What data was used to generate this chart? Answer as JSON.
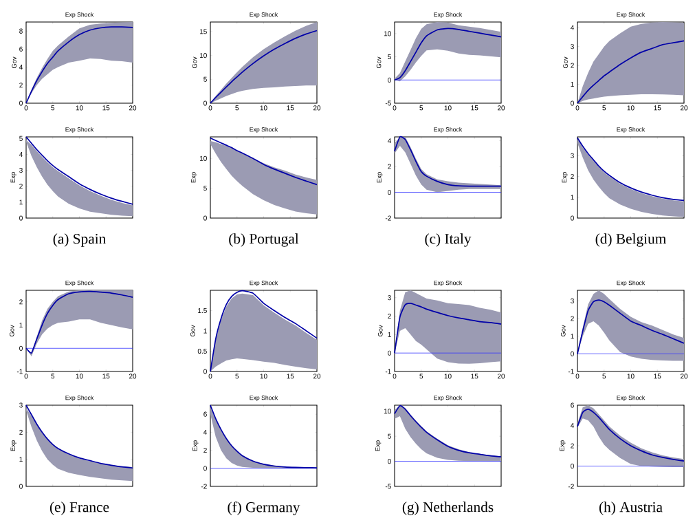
{
  "chart_data": [
    {
      "type": "line",
      "title": "Exp Shock",
      "ylabel": "Gov",
      "x": [
        0,
        1,
        2,
        3,
        4,
        5,
        6,
        8,
        10,
        12,
        14,
        16,
        18,
        20
      ],
      "xlim": [
        0,
        20
      ],
      "xticks": [
        0,
        5,
        10,
        15,
        20
      ],
      "ylim": [
        0,
        9
      ],
      "yticks": [
        0,
        2,
        4,
        6,
        8
      ],
      "series": [
        {
          "color": "#0000a8",
          "values": [
            0,
            1.3,
            2.5,
            3.5,
            4.4,
            5.1,
            5.8,
            6.8,
            7.6,
            8.1,
            8.35,
            8.45,
            8.45,
            8.4
          ],
          "upper": [
            0,
            1.5,
            2.8,
            3.9,
            4.9,
            5.8,
            6.4,
            7.4,
            8.3,
            8.7,
            8.82,
            8.9,
            8.97,
            9
          ],
          "lower": [
            0,
            1.1,
            2.0,
            2.7,
            3.2,
            3.7,
            4.0,
            4.5,
            4.7,
            4.95,
            4.9,
            4.7,
            4.65,
            4.5
          ]
        }
      ]
    },
    {
      "type": "line",
      "title": "Exp Shock",
      "ylabel": "Gov",
      "x": [
        0,
        1,
        2,
        3,
        4,
        5,
        6,
        8,
        10,
        12,
        14,
        16,
        18,
        20
      ],
      "xlim": [
        0,
        20
      ],
      "xticks": [
        0,
        5,
        10,
        15,
        20
      ],
      "ylim": [
        0,
        17
      ],
      "yticks": [
        0,
        5,
        10,
        15
      ],
      "series": [
        {
          "color": "#0000a8",
          "values": [
            0,
            1.2,
            2.3,
            3.4,
            4.5,
            5.5,
            6.5,
            8.3,
            9.9,
            11.3,
            12.5,
            13.6,
            14.5,
            15.2
          ],
          "upper": [
            0,
            1.5,
            2.8,
            4.1,
            5.3,
            6.5,
            7.6,
            9.6,
            11.3,
            12.7,
            14,
            15.2,
            16.2,
            17
          ],
          "lower": [
            0,
            0.5,
            1.0,
            1.5,
            1.9,
            2.3,
            2.6,
            3.0,
            3.2,
            3.3,
            3.5,
            3.6,
            3.7,
            3.7
          ]
        }
      ]
    },
    {
      "type": "line",
      "title": "Exp Shock",
      "ylabel": "Gov",
      "x": [
        0,
        1,
        2,
        3,
        4,
        5,
        6,
        8,
        10,
        12,
        14,
        16,
        18,
        20
      ],
      "xlim": [
        0,
        20
      ],
      "xticks": [
        0,
        5,
        10,
        15,
        20
      ],
      "ylim": [
        -5,
        12.5
      ],
      "yticks": [
        -5,
        0,
        5,
        10
      ],
      "ref_lines": [
        {
          "axis": "y",
          "value": 0,
          "color": "#3333ff"
        }
      ],
      "series": [
        {
          "color": "#0000a8",
          "values": [
            0,
            0.5,
            2.0,
            4.0,
            6.0,
            8.0,
            9.5,
            10.8,
            11.1,
            10.9,
            10.5,
            10.1,
            9.7,
            9.3
          ],
          "upper": [
            0.3,
            1.5,
            4,
            6.5,
            9,
            11,
            12,
            12.5,
            12.4,
            11.8,
            11.5,
            11.2,
            10.8,
            10.4
          ],
          "lower": [
            0,
            -0.3,
            0.8,
            2.2,
            3.8,
            5.2,
            6.4,
            6.6,
            6.3,
            5.7,
            5.4,
            5.3,
            5.1,
            4.9
          ]
        }
      ]
    },
    {
      "type": "line",
      "title": "Exp Shock",
      "ylabel": "Gov",
      "x": [
        0,
        1,
        2,
        3,
        4,
        5,
        6,
        8,
        10,
        12,
        14,
        16,
        18,
        20
      ],
      "xlim": [
        0,
        20
      ],
      "xticks": [
        0,
        5,
        10,
        15,
        20
      ],
      "ylim": [
        0,
        4.3
      ],
      "yticks": [
        0,
        1,
        2,
        3,
        4
      ],
      "series": [
        {
          "color": "#0000a8",
          "values": [
            0,
            0.35,
            0.68,
            0.95,
            1.2,
            1.45,
            1.65,
            2.05,
            2.4,
            2.7,
            2.9,
            3.1,
            3.2,
            3.3
          ],
          "upper": [
            0,
            0.9,
            1.6,
            2.2,
            2.6,
            3.0,
            3.3,
            3.7,
            4.05,
            4.2,
            4.27,
            4.3,
            4.28,
            4.25
          ],
          "lower": [
            0,
            0.12,
            0.2,
            0.25,
            0.3,
            0.35,
            0.37,
            0.42,
            0.45,
            0.47,
            0.47,
            0.46,
            0.45,
            0.42
          ]
        }
      ]
    },
    {
      "type": "line",
      "title": "Exp Shock",
      "ylabel": "Exp",
      "x": [
        0,
        1,
        2,
        3,
        4,
        5,
        6,
        8,
        10,
        12,
        14,
        16,
        18,
        20
      ],
      "xlim": [
        0,
        20
      ],
      "xticks": [
        0,
        5,
        10,
        15,
        20
      ],
      "ylim": [
        0,
        5.1
      ],
      "yticks": [
        0,
        1,
        2,
        3,
        4,
        5
      ],
      "tick_labels": "y",
      "annotations": [
        "(a) Spain"
      ],
      "series": [
        {
          "color": "#0000a8",
          "values": [
            5.1,
            4.7,
            4.3,
            3.95,
            3.6,
            3.3,
            3.05,
            2.6,
            2.15,
            1.8,
            1.5,
            1.25,
            1.05,
            0.87
          ],
          "upper": [
            4.9,
            4.6,
            4.2,
            3.85,
            3.5,
            3.2,
            2.95,
            2.5,
            2.05,
            1.7,
            1.4,
            1.15,
            0.95,
            0.8
          ],
          "lower": [
            4.8,
            3.9,
            3.2,
            2.6,
            2.1,
            1.7,
            1.35,
            0.9,
            0.6,
            0.4,
            0.3,
            0.2,
            0.15,
            0.12
          ]
        }
      ]
    },
    {
      "type": "line",
      "title": "Exp Shock",
      "ylabel": "Exp",
      "x": [
        0,
        1,
        2,
        3,
        4,
        5,
        6,
        8,
        10,
        12,
        14,
        16,
        18,
        20
      ],
      "xlim": [
        0,
        20
      ],
      "xticks": [
        0,
        5,
        10,
        15,
        20
      ],
      "ylim": [
        0,
        13.6
      ],
      "yticks": [
        0,
        5,
        10
      ],
      "tick_labels": "y",
      "annotations": [
        "(b) Portugal"
      ],
      "series": [
        {
          "color": "#0000a8",
          "values": [
            13.4,
            13.0,
            12.6,
            12.2,
            11.8,
            11.3,
            10.9,
            10.0,
            9.0,
            8.2,
            7.5,
            6.8,
            6.2,
            5.6
          ],
          "upper": [
            12.9,
            12.7,
            12.4,
            12.1,
            11.7,
            11.3,
            10.9,
            10.0,
            9.2,
            8.5,
            7.95,
            7.3,
            6.8,
            6.4
          ],
          "lower": [
            12.4,
            10.8,
            9.4,
            8.2,
            7.1,
            6.2,
            5.4,
            4.0,
            3.0,
            2.2,
            1.6,
            1.1,
            0.8,
            0.6
          ]
        }
      ]
    },
    {
      "type": "line",
      "title": "Exp Shock",
      "ylabel": "Exp",
      "x": [
        0,
        1,
        2,
        3,
        4,
        5,
        6,
        8,
        10,
        12,
        14,
        16,
        18,
        20
      ],
      "xlim": [
        0,
        20
      ],
      "xticks": [
        0,
        5,
        10,
        15,
        20
      ],
      "ylim": [
        -2,
        4.3
      ],
      "yticks": [
        -2,
        0,
        2,
        4
      ],
      "tick_labels": "y",
      "annotations": [
        "(c) Italy"
      ],
      "ref_lines": [
        {
          "axis": "y",
          "value": 0,
          "color": "#3333ff"
        }
      ],
      "series": [
        {
          "color": "#0000a8",
          "values": [
            3.2,
            4.3,
            4.1,
            3.3,
            2.4,
            1.6,
            1.25,
            0.85,
            0.6,
            0.5,
            0.48,
            0.48,
            0.48,
            0.48
          ],
          "upper": [
            3.8,
            4.3,
            4.3,
            3.5,
            2.6,
            1.8,
            1.4,
            1.0,
            0.85,
            0.75,
            0.7,
            0.65,
            0.6,
            0.55
          ],
          "lower": [
            3.0,
            3.6,
            3.1,
            2.2,
            1.3,
            0.6,
            0.2,
            0,
            0.1,
            0.2,
            0.25,
            0.25,
            0.25,
            0.25
          ]
        }
      ]
    },
    {
      "type": "line",
      "title": "Exp Shock",
      "ylabel": "Exp",
      "x": [
        0,
        1,
        2,
        3,
        4,
        5,
        6,
        8,
        10,
        12,
        14,
        16,
        18,
        20
      ],
      "xlim": [
        0,
        20
      ],
      "xticks": [
        0,
        5,
        10,
        15,
        20
      ],
      "ylim": [
        0,
        3.9
      ],
      "yticks": [
        0,
        1,
        2,
        3
      ],
      "tick_labels": "y",
      "annotations": [
        "(d) Belgium"
      ],
      "series": [
        {
          "color": "#0000a8",
          "values": [
            3.85,
            3.45,
            3.1,
            2.8,
            2.5,
            2.25,
            2.05,
            1.7,
            1.45,
            1.25,
            1.1,
            0.98,
            0.9,
            0.85
          ],
          "upper": [
            3.8,
            3.4,
            3.05,
            2.75,
            2.45,
            2.2,
            2.0,
            1.65,
            1.4,
            1.2,
            1.05,
            0.93,
            0.85,
            0.8
          ],
          "lower": [
            3.6,
            2.9,
            2.3,
            1.85,
            1.5,
            1.2,
            0.95,
            0.65,
            0.45,
            0.3,
            0.2,
            0.12,
            0.08,
            0.05
          ]
        }
      ]
    },
    {
      "type": "line",
      "title": "Exp Shock",
      "ylabel": "Gov",
      "x": [
        0,
        1,
        2,
        3,
        4,
        5,
        6,
        8,
        10,
        12,
        14,
        16,
        18,
        20
      ],
      "xlim": [
        0,
        20
      ],
      "xticks": [
        0,
        5,
        10,
        15,
        20
      ],
      "ylim": [
        -1,
        2.5
      ],
      "yticks": [
        -1,
        0,
        1,
        2
      ],
      "ref_lines": [
        {
          "axis": "y",
          "value": 0,
          "color": "#3333ff"
        }
      ],
      "series": [
        {
          "color": "#0000a8",
          "values": [
            0,
            -0.2,
            0.4,
            1.0,
            1.5,
            1.85,
            2.1,
            2.35,
            2.43,
            2.45,
            2.42,
            2.38,
            2.3,
            2.2
          ],
          "upper": [
            0,
            -0.2,
            0.5,
            1.2,
            1.7,
            2.0,
            2.25,
            2.45,
            2.5,
            2.5,
            2.5,
            2.5,
            2.5,
            2.5
          ],
          "lower": [
            0,
            -0.35,
            0.2,
            0.6,
            0.85,
            1.0,
            1.1,
            1.15,
            1.25,
            1.25,
            1.1,
            1.0,
            0.9,
            0.82
          ]
        }
      ]
    },
    {
      "type": "line",
      "title": "Exp Shock",
      "ylabel": "Gov",
      "x": [
        0,
        1,
        2,
        3,
        4,
        5,
        6,
        8,
        10,
        12,
        14,
        16,
        18,
        20
      ],
      "xlim": [
        0,
        20
      ],
      "xticks": [
        0,
        5,
        10,
        15,
        20
      ],
      "ylim": [
        0,
        2
      ],
      "yticks": [
        0,
        0.5,
        1,
        1.5
      ],
      "series": [
        {
          "color": "#0000a8",
          "values": [
            0,
            0.8,
            1.3,
            1.65,
            1.85,
            1.95,
            1.99,
            1.93,
            1.68,
            1.5,
            1.33,
            1.18,
            1.0,
            0.82
          ],
          "upper": [
            0,
            0.78,
            1.27,
            1.6,
            1.8,
            1.9,
            1.92,
            1.88,
            1.63,
            1.45,
            1.28,
            1.13,
            0.95,
            0.78
          ],
          "lower": [
            0,
            0.12,
            0.2,
            0.27,
            0.3,
            0.32,
            0.31,
            0.28,
            0.24,
            0.21,
            0.16,
            0.12,
            0.08,
            0.05
          ]
        }
      ]
    },
    {
      "type": "line",
      "title": "Exp Shock",
      "ylabel": "Gov",
      "x": [
        0,
        1,
        2,
        3,
        4,
        5,
        6,
        8,
        10,
        12,
        14,
        16,
        18,
        20
      ],
      "xlim": [
        0,
        20
      ],
      "xticks": [
        0,
        5,
        10,
        15,
        20
      ],
      "ylim": [
        -1,
        3.4
      ],
      "yticks": [
        -1,
        0,
        1,
        2,
        3
      ],
      "ref_lines": [
        {
          "axis": "y",
          "value": 0,
          "color": "#3333ff"
        }
      ],
      "series": [
        {
          "color": "#0000a8",
          "values": [
            0,
            1.95,
            2.62,
            2.7,
            2.6,
            2.5,
            2.38,
            2.2,
            2.03,
            1.9,
            1.8,
            1.7,
            1.65,
            1.57
          ],
          "upper": [
            0,
            2.3,
            3.3,
            3.4,
            3.25,
            3.1,
            2.95,
            2.85,
            2.7,
            2.65,
            2.6,
            2.45,
            2.35,
            2.2
          ],
          "lower": [
            0,
            1.2,
            1.35,
            1.0,
            0.65,
            0.45,
            0.2,
            -0.3,
            -0.5,
            -0.57,
            -0.58,
            -0.55,
            -0.5,
            -0.45
          ]
        }
      ]
    },
    {
      "type": "line",
      "title": "Exp Shock",
      "ylabel": "Gov",
      "x": [
        0,
        1,
        2,
        3,
        4,
        5,
        6,
        8,
        10,
        12,
        14,
        16,
        18,
        20
      ],
      "xlim": [
        0,
        20
      ],
      "xticks": [
        0,
        5,
        10,
        15,
        20
      ],
      "ylim": [
        -1,
        3.6
      ],
      "yticks": [
        -1,
        0,
        1,
        2,
        3
      ],
      "ref_lines": [
        {
          "axis": "y",
          "value": 0,
          "color": "#3333ff"
        }
      ],
      "series": [
        {
          "color": "#0000a8",
          "values": [
            0,
            1.3,
            2.45,
            2.95,
            3.05,
            2.95,
            2.75,
            2.3,
            1.86,
            1.6,
            1.33,
            1.1,
            0.85,
            0.6
          ],
          "upper": [
            0,
            1.5,
            2.8,
            3.4,
            3.6,
            3.4,
            3.1,
            2.55,
            2.1,
            1.8,
            1.6,
            1.35,
            1.1,
            0.9
          ],
          "lower": [
            0,
            1.0,
            1.7,
            1.85,
            1.6,
            1.2,
            0.75,
            0.1,
            -0.15,
            -0.28,
            -0.35,
            -0.38,
            -0.4,
            -0.4
          ]
        }
      ]
    },
    {
      "type": "line",
      "title": "Exp Shock",
      "ylabel": "Exp",
      "x": [
        0,
        1,
        2,
        3,
        4,
        5,
        6,
        8,
        10,
        12,
        14,
        16,
        18,
        20
      ],
      "xlim": [
        0,
        20
      ],
      "xticks": [
        0,
        5,
        10,
        15,
        20
      ],
      "ylim": [
        0,
        3
      ],
      "yticks": [
        0,
        1,
        2,
        3
      ],
      "tick_labels": "y",
      "annotations": [
        "(e) France"
      ],
      "series": [
        {
          "color": "#0000a8",
          "values": [
            3.0,
            2.65,
            2.3,
            2.0,
            1.75,
            1.55,
            1.4,
            1.2,
            1.05,
            0.95,
            0.85,
            0.78,
            0.72,
            0.68
          ],
          "upper": [
            2.9,
            2.6,
            2.28,
            1.98,
            1.73,
            1.53,
            1.38,
            1.18,
            1.03,
            0.93,
            0.84,
            0.78,
            0.74,
            0.72
          ],
          "lower": [
            2.8,
            2.2,
            1.7,
            1.3,
            1.0,
            0.8,
            0.65,
            0.5,
            0.42,
            0.35,
            0.3,
            0.25,
            0.22,
            0.2
          ]
        }
      ]
    },
    {
      "type": "line",
      "title": "Exp Shock",
      "ylabel": "Exp",
      "x": [
        0,
        1,
        2,
        3,
        4,
        5,
        6,
        8,
        10,
        12,
        14,
        16,
        18,
        20
      ],
      "xlim": [
        0,
        20
      ],
      "xticks": [
        0,
        5,
        10,
        15,
        20
      ],
      "ylim": [
        -2,
        7
      ],
      "yticks": [
        -2,
        0,
        2,
        4,
        6
      ],
      "tick_labels": "y",
      "annotations": [
        "(f) Germany"
      ],
      "ref_lines": [
        {
          "axis": "y",
          "value": 0,
          "color": "#3333ff"
        }
      ],
      "series": [
        {
          "color": "#0000a8",
          "values": [
            7.0,
            5.5,
            4.3,
            3.3,
            2.5,
            1.9,
            1.4,
            0.8,
            0.45,
            0.25,
            0.15,
            0.1,
            0.07,
            0.05
          ],
          "upper": [
            6.8,
            5.4,
            4.2,
            3.25,
            2.5,
            1.9,
            1.45,
            0.85,
            0.5,
            0.3,
            0.2,
            0.14,
            0.1,
            0.08
          ],
          "lower": [
            6.0,
            3.5,
            2.0,
            1.1,
            0.6,
            0.3,
            0.15,
            0.05,
            0.02,
            0.01,
            -0.02,
            -0.03,
            -0.02,
            0
          ]
        }
      ]
    },
    {
      "type": "line",
      "title": "Exp Shock",
      "ylabel": "Exp",
      "x": [
        0,
        1,
        2,
        3,
        4,
        5,
        6,
        8,
        10,
        12,
        14,
        16,
        18,
        20
      ],
      "xlim": [
        0,
        20
      ],
      "xticks": [
        0,
        5,
        10,
        15,
        20
      ],
      "ylim": [
        -5,
        11.2
      ],
      "yticks": [
        -5,
        0,
        5,
        10
      ],
      "tick_labels": "y",
      "annotations": [
        "(g) Netherlands"
      ],
      "ref_lines": [
        {
          "axis": "y",
          "value": 0,
          "color": "#3333ff"
        }
      ],
      "series": [
        {
          "color": "#0000a8",
          "values": [
            9.5,
            11.1,
            10.4,
            9.1,
            7.9,
            6.8,
            5.8,
            4.3,
            3.0,
            2.2,
            1.7,
            1.4,
            1.1,
            0.9
          ],
          "upper": [
            10.2,
            11.2,
            10.6,
            9.3,
            8.1,
            7.0,
            6.0,
            4.5,
            3.2,
            2.4,
            1.8,
            1.45,
            1.2,
            1.0
          ],
          "lower": [
            8.5,
            9.0,
            6.5,
            4.8,
            3.5,
            2.4,
            1.6,
            0.7,
            0.3,
            0.1,
            0.05,
            0.03,
            0.02,
            0.02
          ]
        }
      ]
    },
    {
      "type": "line",
      "title": "Exp Shock",
      "ylabel": "Exp",
      "x": [
        0,
        1,
        2,
        3,
        4,
        5,
        6,
        8,
        10,
        12,
        14,
        16,
        18,
        20
      ],
      "xlim": [
        0,
        20
      ],
      "xticks": [
        0,
        5,
        10,
        15,
        20
      ],
      "ylim": [
        -2,
        6
      ],
      "yticks": [
        -2,
        0,
        2,
        4,
        6
      ],
      "tick_labels": "y",
      "annotations": [
        "(h) Austria"
      ],
      "ref_lines": [
        {
          "axis": "y",
          "value": 0,
          "color": "#3333ff"
        }
      ],
      "series": [
        {
          "color": "#0000a8",
          "values": [
            3.9,
            5.3,
            5.6,
            5.3,
            4.8,
            4.2,
            3.6,
            2.7,
            2.0,
            1.5,
            1.1,
            0.85,
            0.65,
            0.5
          ],
          "upper": [
            4.2,
            5.8,
            6.0,
            5.7,
            5.1,
            4.5,
            3.9,
            3.0,
            2.3,
            1.75,
            1.35,
            1.05,
            0.85,
            0.7
          ],
          "lower": [
            3.8,
            4.7,
            4.5,
            3.9,
            2.9,
            2.1,
            1.6,
            0.8,
            0.2,
            0,
            -0.05,
            -0.08,
            -0.1,
            -0.1
          ]
        }
      ]
    }
  ]
}
